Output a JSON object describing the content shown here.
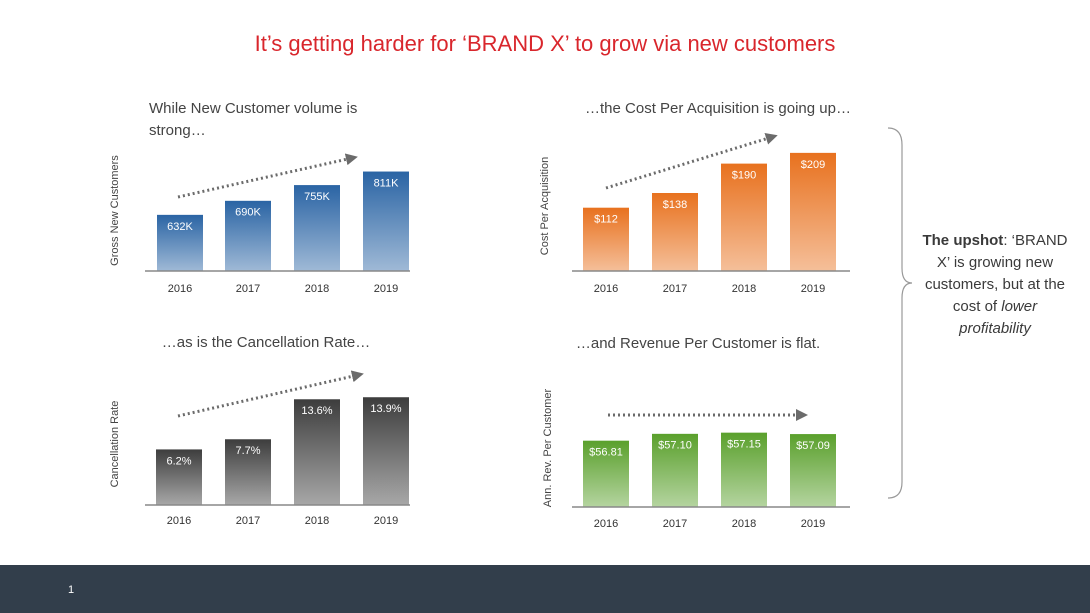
{
  "title": "It’s getting harder for ‘BRAND X’ to grow via new customers",
  "chart_data": [
    {
      "type": "bar",
      "subtitle": [
        "While New Customer volume is",
        "strong…"
      ],
      "y_label": "Gross New Customers",
      "categories": [
        "2016",
        "2017",
        "2018",
        "2019"
      ],
      "values": [
        632000,
        690000,
        755000,
        811000
      ],
      "value_labels": [
        "632K",
        "690K",
        "755K",
        "811K"
      ],
      "color": "#2a64a4",
      "ylim": [
        400000,
        900000
      ]
    },
    {
      "type": "bar",
      "subtitle": [
        "…the Cost Per Acquisition is going up…"
      ],
      "y_label": "Cost Per Acquisition",
      "categories": [
        "2016",
        "2017",
        "2018",
        "2019"
      ],
      "values": [
        112,
        138,
        190,
        209
      ],
      "value_labels": [
        "$112",
        "$138",
        "$190",
        "$209"
      ],
      "color": "#e8711e",
      "ylim": [
        0,
        230
      ]
    },
    {
      "type": "bar",
      "subtitle": [
        "…as is the Cancellation Rate…"
      ],
      "y_label": "Cancellation Rate",
      "categories": [
        "2016",
        "2017",
        "2018",
        "2019"
      ],
      "values": [
        6.2,
        7.7,
        13.6,
        13.9
      ],
      "value_labels": [
        "6.2%",
        "7.7%",
        "13.6%",
        "13.9%"
      ],
      "color": "#3d3d3d",
      "ylim": [
        -2,
        16
      ]
    },
    {
      "type": "bar",
      "subtitle": [
        "…and Revenue Per Customer is flat."
      ],
      "y_label": "Ann. Rev. Per Customer",
      "categories": [
        "2016",
        "2017",
        "2018",
        "2019"
      ],
      "values": [
        56.81,
        57.1,
        57.15,
        57.09
      ],
      "value_labels": [
        "$56.81",
        "$57.10",
        "$57.15",
        "$57.09"
      ],
      "color": "#5aa02c",
      "ylim": [
        54,
        59
      ]
    }
  ],
  "upshot": [
    "The upshot",
    ": ‘BRAND X’ is growing new customers, but at the cost of ",
    "lower profitability"
  ],
  "page_number": "1"
}
